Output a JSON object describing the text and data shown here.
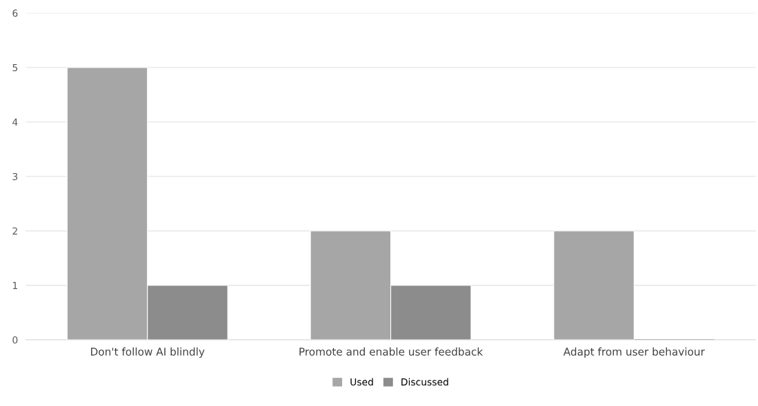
{
  "chart_data": {
    "type": "bar",
    "categories": [
      "Don't follow AI blindly",
      "Promote and enable user feedback",
      "Adapt from user behaviour"
    ],
    "series": [
      {
        "name": "Used",
        "color": "#a6a6a6",
        "values": [
          5,
          2,
          2
        ]
      },
      {
        "name": "Discussed",
        "color": "#8c8c8c",
        "values": [
          1,
          1,
          0
        ]
      }
    ],
    "ylim": [
      0,
      6
    ],
    "yticks": [
      0,
      1,
      2,
      3,
      4,
      5,
      6
    ],
    "grid": "y",
    "legend": "bottom"
  }
}
